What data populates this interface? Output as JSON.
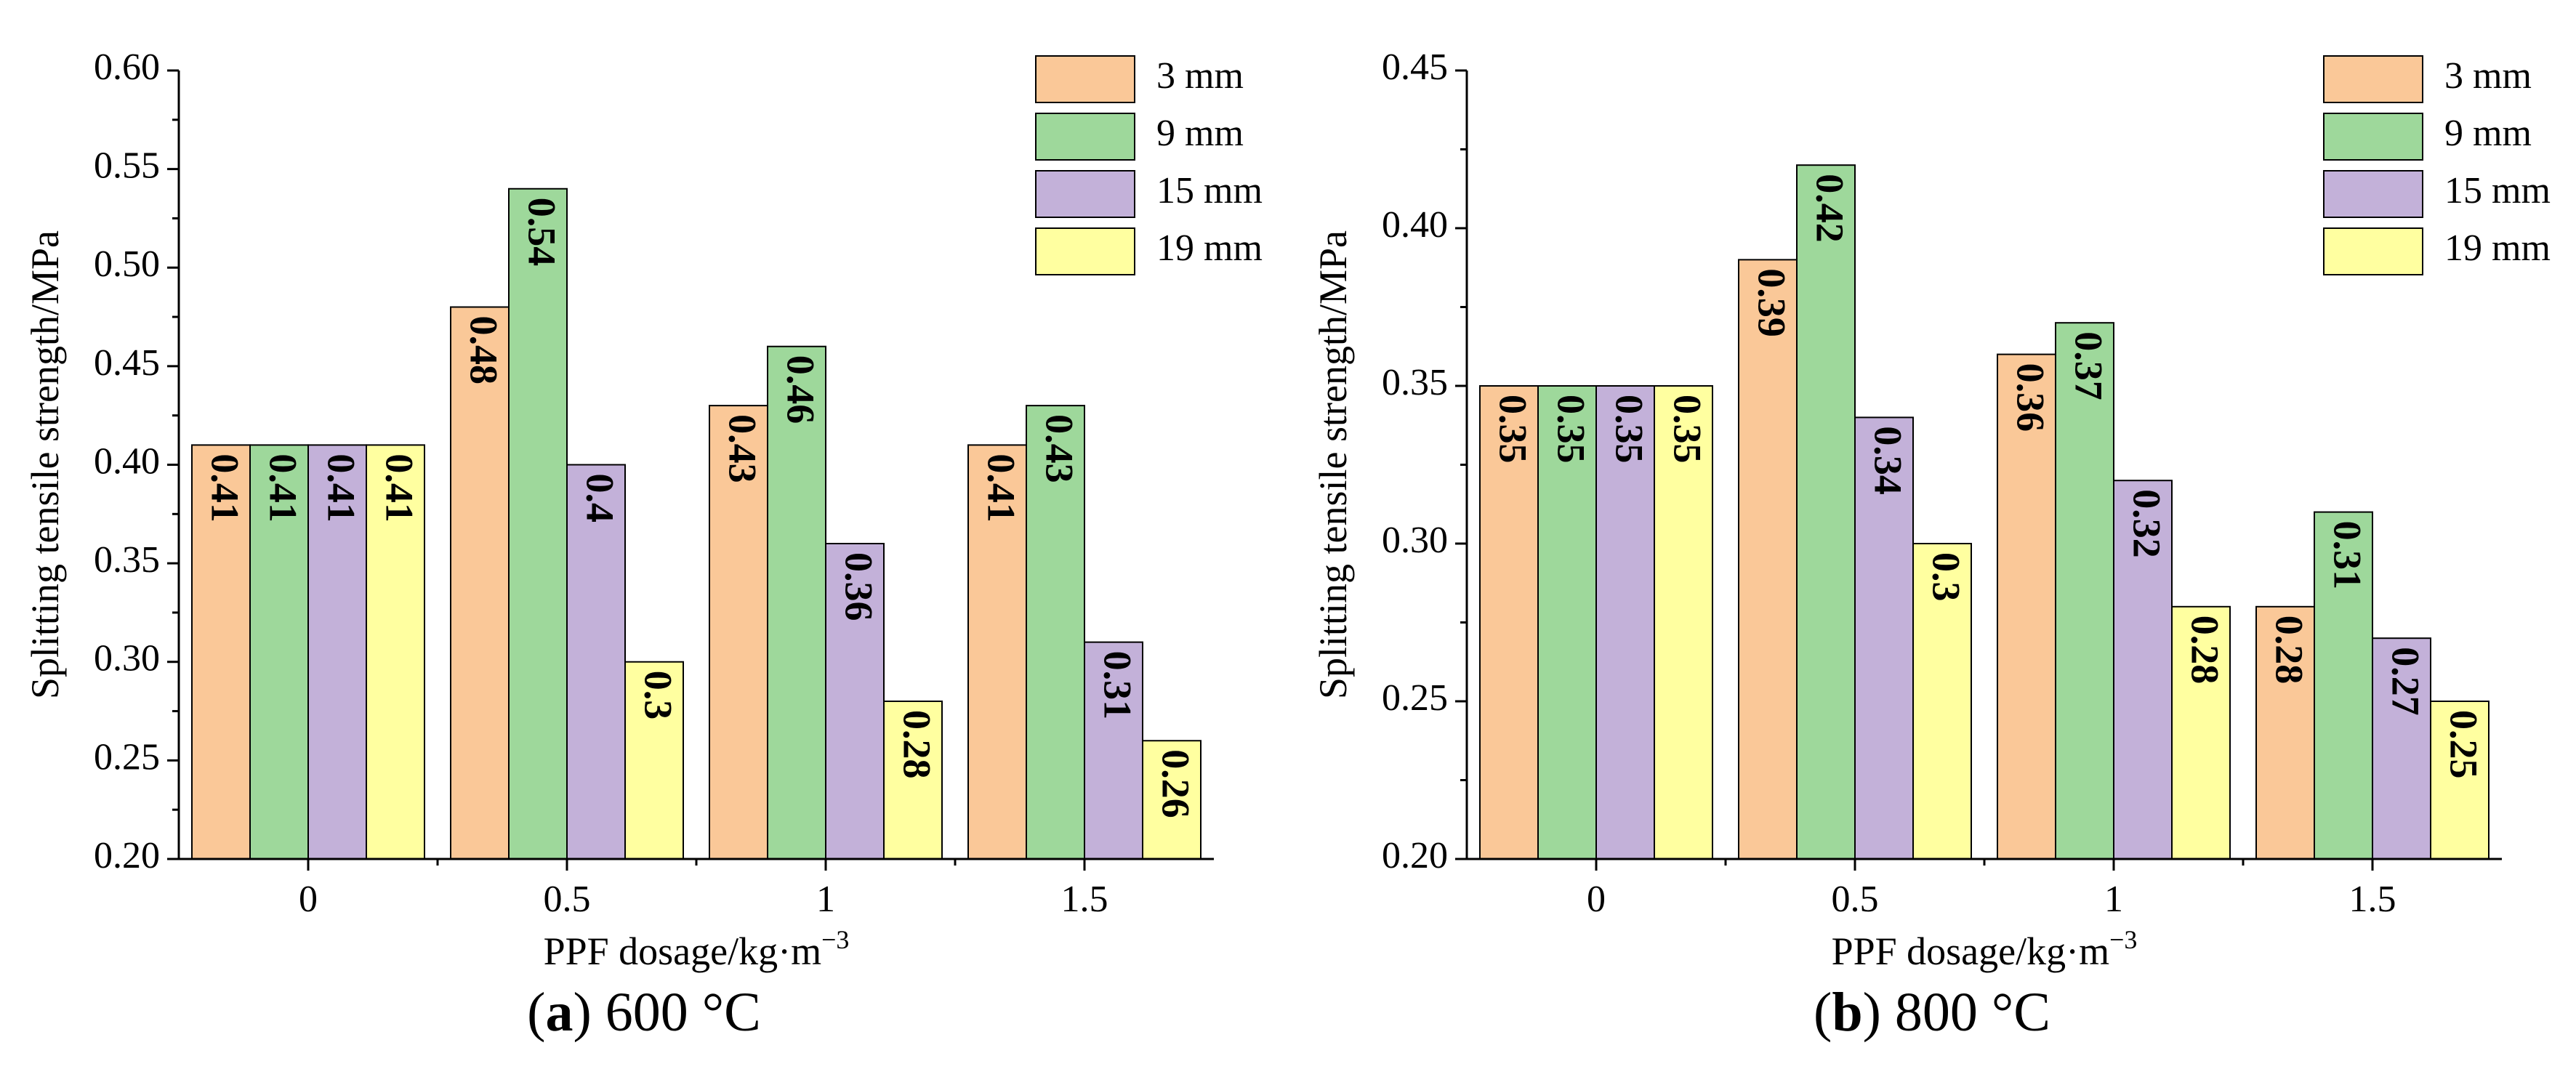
{
  "figure": {
    "panels": [
      {
        "caption_open": "(",
        "caption_letter": "a",
        "caption_close": ")",
        "caption_rest": " 600 °C"
      },
      {
        "caption_open": "(",
        "caption_letter": "b",
        "caption_close": ")",
        "caption_rest": " 800 °C"
      }
    ]
  },
  "colors": {
    "3 mm": "#FAC898",
    "9 mm": "#9ED89B",
    "15 mm": "#C3B1D9",
    "19 mm": "#FFFFA0",
    "edge": "#000000"
  },
  "chart_data": [
    {
      "type": "bar",
      "title": "(a) 600 °C",
      "xlabel": "PPF dosage/kg·m",
      "xlabel_sup": "−3",
      "ylabel": "Splitting tensile strength/MPa",
      "categories": [
        "0",
        "0.5",
        "1",
        "1.5"
      ],
      "ylim": [
        0.2,
        0.6
      ],
      "yticks": [
        "0.20",
        "0.25",
        "0.30",
        "0.35",
        "0.40",
        "0.45",
        "0.50",
        "0.55",
        "0.60"
      ],
      "legend_position": "top-right",
      "series": [
        {
          "name": "3 mm",
          "values": [
            0.41,
            0.48,
            0.43,
            0.41
          ],
          "labels": [
            "0.41",
            "0.48",
            "0.43",
            "0.41"
          ]
        },
        {
          "name": "9 mm",
          "values": [
            0.41,
            0.54,
            0.46,
            0.43
          ],
          "labels": [
            "0.41",
            "0.54",
            "0.46",
            "0.43"
          ]
        },
        {
          "name": "15 mm",
          "values": [
            0.41,
            0.4,
            0.36,
            0.31
          ],
          "labels": [
            "0.41",
            "0.4",
            "0.36",
            "0.31"
          ]
        },
        {
          "name": "19 mm",
          "values": [
            0.41,
            0.3,
            0.28,
            0.26
          ],
          "labels": [
            "0.41",
            "0.3",
            "0.28",
            "0.26"
          ]
        }
      ]
    },
    {
      "type": "bar",
      "title": "(b) 800 °C",
      "xlabel": "PPF dosage/kg·m",
      "xlabel_sup": "−3",
      "ylabel": "Splitting tensile strength/MPa",
      "categories": [
        "0",
        "0.5",
        "1",
        "1.5"
      ],
      "ylim": [
        0.2,
        0.45
      ],
      "yticks": [
        "0.20",
        "0.25",
        "0.30",
        "0.35",
        "0.40",
        "0.45"
      ],
      "legend_position": "top-right",
      "series": [
        {
          "name": "3 mm",
          "values": [
            0.35,
            0.39,
            0.36,
            0.28
          ],
          "labels": [
            "0.35",
            "0.39",
            "0.36",
            "0.28"
          ]
        },
        {
          "name": "9 mm",
          "values": [
            0.35,
            0.42,
            0.37,
            0.31
          ],
          "labels": [
            "0.35",
            "0.42",
            "0.37",
            "0.31"
          ]
        },
        {
          "name": "15 mm",
          "values": [
            0.35,
            0.34,
            0.32,
            0.27
          ],
          "labels": [
            "0.35",
            "0.34",
            "0.32",
            "0.27"
          ]
        },
        {
          "name": "19 mm",
          "values": [
            0.35,
            0.3,
            0.28,
            0.25
          ],
          "labels": [
            "0.35",
            "0.3",
            "0.28",
            "0.25"
          ]
        }
      ]
    }
  ]
}
